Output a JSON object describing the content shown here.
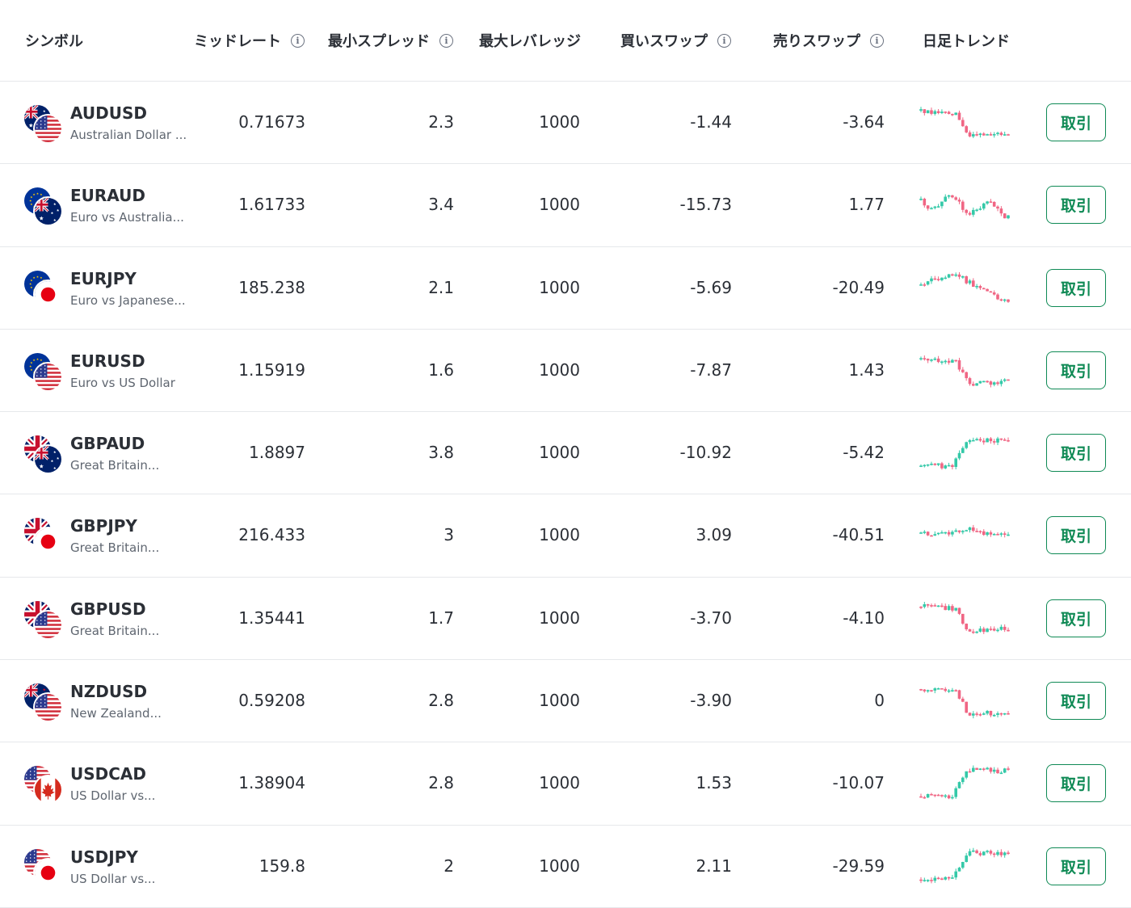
{
  "header": {
    "symbol": "シンボル",
    "mid": "ミッドレート",
    "spread": "最小スプレッド",
    "leverage": "最大レバレッジ",
    "swap_buy": "買いスワップ",
    "swap_sell": "売りスワップ",
    "trend": "日足トレンド"
  },
  "colors": {
    "up": "#34c9a8",
    "down": "#f06684",
    "accent": "#0f8a55",
    "divider": "#e6e8eb"
  },
  "rows": [
    {
      "symbol": "AUDUSD",
      "desc": "Australian Dollar ...",
      "mid": "0.71673",
      "spread": "2.3",
      "leverage": "1000",
      "swap_buy": "-1.44",
      "swap_sell": "-3.64",
      "trade": "取引",
      "base": "AU",
      "quote": "US",
      "trend": "drop-flat"
    },
    {
      "symbol": "EURAUD",
      "desc": "Euro vs Australia...",
      "mid": "1.61733",
      "spread": "3.4",
      "leverage": "1000",
      "swap_buy": "-15.73",
      "swap_sell": "1.77",
      "trade": "取引",
      "base": "EU",
      "quote": "AU",
      "trend": "choppy"
    },
    {
      "symbol": "EURJPY",
      "desc": "Euro vs Japanese...",
      "mid": "185.238",
      "spread": "2.1",
      "leverage": "1000",
      "swap_buy": "-5.69",
      "swap_sell": "-20.49",
      "trade": "取引",
      "base": "EU",
      "quote": "JP",
      "trend": "rise-fall"
    },
    {
      "symbol": "EURUSD",
      "desc": "Euro vs US Dollar",
      "mid": "1.15919",
      "spread": "1.6",
      "leverage": "1000",
      "swap_buy": "-7.87",
      "swap_sell": "1.43",
      "trade": "取引",
      "base": "EU",
      "quote": "US",
      "trend": "drop-flat"
    },
    {
      "symbol": "GBPAUD",
      "desc": "Great Britain...",
      "mid": "1.8897",
      "spread": "3.8",
      "leverage": "1000",
      "swap_buy": "-10.92",
      "swap_sell": "-5.42",
      "trade": "取引",
      "base": "GB",
      "quote": "AU",
      "trend": "rise"
    },
    {
      "symbol": "GBPJPY",
      "desc": "Great Britain...",
      "mid": "216.433",
      "spread": "3",
      "leverage": "1000",
      "swap_buy": "3.09",
      "swap_sell": "-40.51",
      "trade": "取引",
      "base": "GB",
      "quote": "JP",
      "trend": "flat"
    },
    {
      "symbol": "GBPUSD",
      "desc": "Great Britain...",
      "mid": "1.35441",
      "spread": "1.7",
      "leverage": "1000",
      "swap_buy": "-3.70",
      "swap_sell": "-4.10",
      "trade": "取引",
      "base": "GB",
      "quote": "US",
      "trend": "drop-flat"
    },
    {
      "symbol": "NZDUSD",
      "desc": "New Zealand...",
      "mid": "0.59208",
      "spread": "2.8",
      "leverage": "1000",
      "swap_buy": "-3.90",
      "swap_sell": "0",
      "trade": "取引",
      "base": "NZ",
      "quote": "US",
      "trend": "drop-flat"
    },
    {
      "symbol": "USDCAD",
      "desc": "US Dollar vs...",
      "mid": "1.38904",
      "spread": "2.8",
      "leverage": "1000",
      "swap_buy": "1.53",
      "swap_sell": "-10.07",
      "trade": "取引",
      "base": "US",
      "quote": "CA",
      "trend": "rise"
    },
    {
      "symbol": "USDJPY",
      "desc": "US Dollar vs...",
      "mid": "159.8",
      "spread": "2",
      "leverage": "1000",
      "swap_buy": "2.11",
      "swap_sell": "-29.59",
      "trade": "取引",
      "base": "US",
      "quote": "JP",
      "trend": "rise"
    }
  ]
}
